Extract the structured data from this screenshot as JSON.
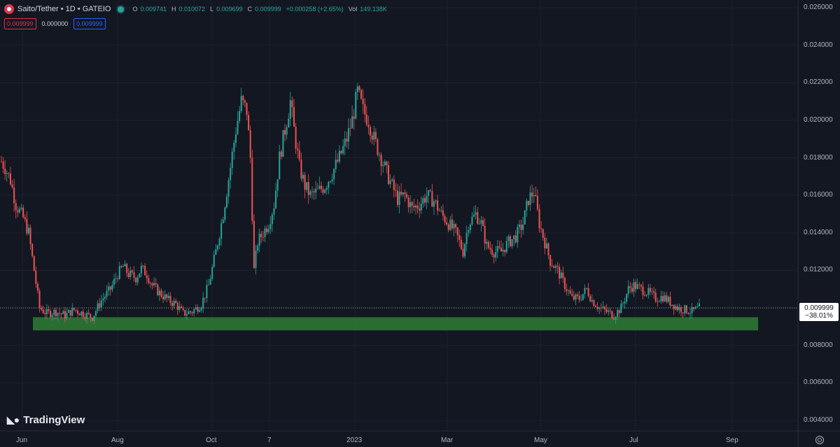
{
  "header": {
    "symbol": "Saito/Tether • 1D • GATEIO",
    "o_label": "O",
    "o_val": "0.009741",
    "h_label": "H",
    "h_val": "0.010072",
    "l_label": "L",
    "l_val": "0.009699",
    "c_label": "C",
    "c_val": "0.009999",
    "change": "+0.000258 (+2.65%)",
    "vol_label": "Vol",
    "vol_val": "149.138K"
  },
  "pills": {
    "bid": "0.009999",
    "spread": "0.000000",
    "ask": "0.009999"
  },
  "price_label": {
    "price": "0.009999",
    "change": "−38.01%"
  },
  "brand": "TradingView",
  "colors": {
    "up": "#26a69a",
    "down": "#ef5350",
    "zone": "#2e7d32",
    "bg": "#131722",
    "grid": "#1e222d"
  },
  "chart_data": {
    "type": "candlestick",
    "x_ticks": [
      "Jun",
      "Aug",
      "Oct",
      "7",
      "2023",
      "Mar",
      "May",
      "Jul",
      "Sep"
    ],
    "y_ticks": [
      "0.026000",
      "0.024000",
      "0.022000",
      "0.020000",
      "0.018000",
      "0.016000",
      "0.014000",
      "0.012000",
      "0.010000",
      "0.008000",
      "0.006000",
      "0.004000"
    ],
    "ylim": [
      0.0037,
      0.0263
    ],
    "last_price": 0.009999,
    "support_zone": [
      0.0088,
      0.0095
    ],
    "close_path": [
      [
        0,
        0.0178
      ],
      [
        2,
        0.0175
      ],
      [
        5,
        0.0168
      ],
      [
        8,
        0.0155
      ],
      [
        12,
        0.0148
      ],
      [
        15,
        0.014
      ],
      [
        18,
        0.012
      ],
      [
        21,
        0.01
      ],
      [
        25,
        0.0097
      ],
      [
        30,
        0.0098
      ],
      [
        35,
        0.0096
      ],
      [
        40,
        0.0099
      ],
      [
        45,
        0.0097
      ],
      [
        50,
        0.0095
      ],
      [
        55,
        0.0104
      ],
      [
        60,
        0.011
      ],
      [
        64,
        0.0118
      ],
      [
        67,
        0.0122
      ],
      [
        70,
        0.0118
      ],
      [
        74,
        0.0116
      ],
      [
        77,
        0.0121
      ],
      [
        80,
        0.0118
      ],
      [
        83,
        0.0112
      ],
      [
        87,
        0.0108
      ],
      [
        92,
        0.0104
      ],
      [
        96,
        0.0102
      ],
      [
        100,
        0.0097
      ],
      [
        105,
        0.0098
      ],
      [
        110,
        0.0102
      ],
      [
        114,
        0.0112
      ],
      [
        118,
        0.013
      ],
      [
        122,
        0.015
      ],
      [
        126,
        0.0175
      ],
      [
        129,
        0.0195
      ],
      [
        132,
        0.021
      ],
      [
        135,
        0.0205
      ],
      [
        137,
        0.018
      ],
      [
        139,
        0.012
      ],
      [
        141,
        0.0135
      ],
      [
        144,
        0.014
      ],
      [
        147,
        0.0145
      ],
      [
        150,
        0.0155
      ],
      [
        153,
        0.018
      ],
      [
        156,
        0.0195
      ],
      [
        159,
        0.021
      ],
      [
        161,
        0.0195
      ],
      [
        164,
        0.0175
      ],
      [
        167,
        0.0165
      ],
      [
        170,
        0.016
      ],
      [
        174,
        0.0162
      ],
      [
        178,
        0.0165
      ],
      [
        182,
        0.0172
      ],
      [
        186,
        0.018
      ],
      [
        190,
        0.019
      ],
      [
        193,
        0.02
      ],
      [
        196,
        0.0215
      ],
      [
        199,
        0.0205
      ],
      [
        202,
        0.02
      ],
      [
        205,
        0.019
      ],
      [
        209,
        0.018
      ],
      [
        212,
        0.0172
      ],
      [
        215,
        0.0165
      ],
      [
        218,
        0.0158
      ],
      [
        222,
        0.016
      ],
      [
        226,
        0.0153
      ],
      [
        230,
        0.0155
      ],
      [
        234,
        0.016
      ],
      [
        238,
        0.0157
      ],
      [
        242,
        0.015
      ],
      [
        246,
        0.0145
      ],
      [
        250,
        0.014
      ],
      [
        254,
        0.013
      ],
      [
        257,
        0.0145
      ],
      [
        261,
        0.015
      ],
      [
        264,
        0.0145
      ],
      [
        267,
        0.0133
      ],
      [
        271,
        0.013
      ],
      [
        275,
        0.013
      ],
      [
        279,
        0.0135
      ],
      [
        283,
        0.0138
      ],
      [
        287,
        0.0145
      ],
      [
        290,
        0.0158
      ],
      [
        293,
        0.0162
      ],
      [
        296,
        0.0145
      ],
      [
        299,
        0.0135
      ],
      [
        302,
        0.0125
      ],
      [
        306,
        0.012
      ],
      [
        310,
        0.0112
      ],
      [
        314,
        0.0105
      ],
      [
        318,
        0.0105
      ],
      [
        322,
        0.011
      ],
      [
        325,
        0.0104
      ],
      [
        329,
        0.01
      ],
      [
        333,
        0.0098
      ],
      [
        337,
        0.0096
      ],
      [
        341,
        0.01
      ],
      [
        345,
        0.011
      ],
      [
        348,
        0.0112
      ],
      [
        352,
        0.011
      ],
      [
        356,
        0.0108
      ],
      [
        360,
        0.0105
      ],
      [
        364,
        0.0106
      ],
      [
        368,
        0.0103
      ],
      [
        372,
        0.01
      ],
      [
        376,
        0.0099
      ],
      [
        380,
        0.0098
      ],
      [
        384,
        0.01
      ]
    ]
  }
}
